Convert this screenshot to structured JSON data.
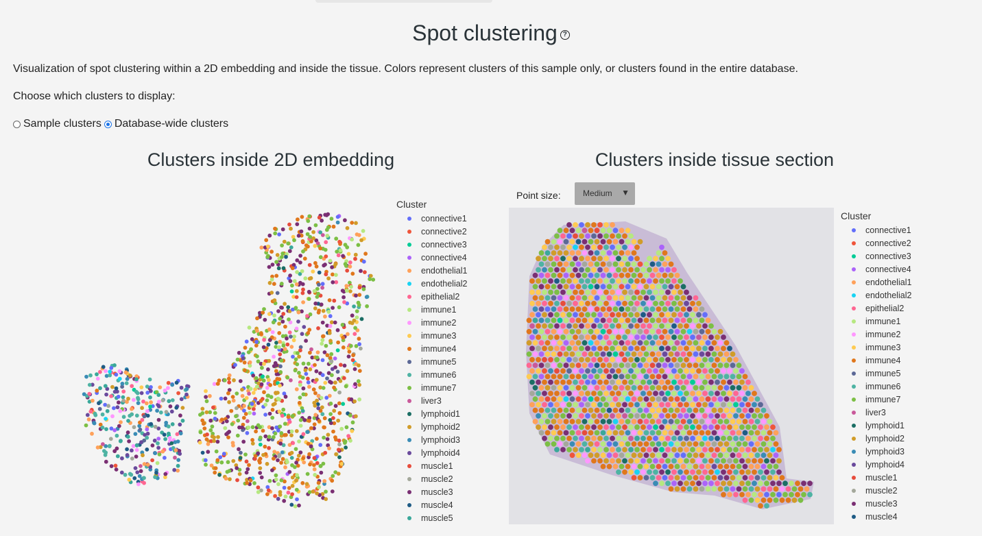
{
  "header": {
    "title": "Spot clustering",
    "help_icon": "question-circle-icon",
    "description": "Visualization of spot clustering within a 2D embedding and inside the tissue. Colors represent clusters of this sample only, or clusters found in the entire database.",
    "choose_label": "Choose which clusters to display:"
  },
  "radio": {
    "options": [
      {
        "label": "Sample clusters",
        "selected": false
      },
      {
        "label": "Database-wide clusters",
        "selected": true
      }
    ]
  },
  "left_panel": {
    "title": "Clusters inside 2D embedding",
    "legend_title": "Cluster",
    "legend_items": [
      "connective1",
      "connective2",
      "connective3",
      "connective4",
      "endothelial1",
      "endothelial2",
      "epithelial2",
      "immune1",
      "immune2",
      "immune3",
      "immune4",
      "immune5",
      "immune6",
      "immune7",
      "liver3",
      "lymphoid1",
      "lymphoid2",
      "lymphoid3",
      "lymphoid4",
      "muscle1",
      "muscle2",
      "muscle3",
      "muscle4",
      "muscle5"
    ]
  },
  "right_panel": {
    "title": "Clusters inside tissue section",
    "point_size_label": "Point size:",
    "point_size_value": "Medium",
    "legend_title": "Cluster",
    "legend_items": [
      "connective1",
      "connective2",
      "connective3",
      "connective4",
      "endothelial1",
      "endothelial2",
      "epithelial2",
      "immune1",
      "immune2",
      "immune3",
      "immune4",
      "immune5",
      "immune6",
      "immune7",
      "liver3",
      "lymphoid1",
      "lymphoid2",
      "lymphoid3",
      "lymphoid4",
      "muscle1",
      "muscle2",
      "muscle3",
      "muscle4"
    ]
  },
  "colors": {
    "connective1": "#636efa",
    "connective2": "#ef553b",
    "connective3": "#00cc96",
    "connective4": "#ab63fa",
    "endothelial1": "#ffa15a",
    "endothelial2": "#19d3f3",
    "epithelial2": "#ff6692",
    "immune1": "#b6e880",
    "immune2": "#ff97ff",
    "immune3": "#fecb52",
    "immune4": "#e0771c",
    "immune5": "#5c6896",
    "immune6": "#4eb3a3",
    "immune7": "#7cbf45",
    "liver3": "#c9599a",
    "lymphoid1": "#1b6e64",
    "lymphoid2": "#d19c29",
    "lymphoid3": "#3a8cb5",
    "lymphoid4": "#6a4a9c",
    "muscle1": "#e74c3c",
    "muscle2": "#a4a89b",
    "muscle3": "#7a2f73",
    "muscle4": "#1e5b85",
    "muscle5": "#3aa89a"
  }
}
